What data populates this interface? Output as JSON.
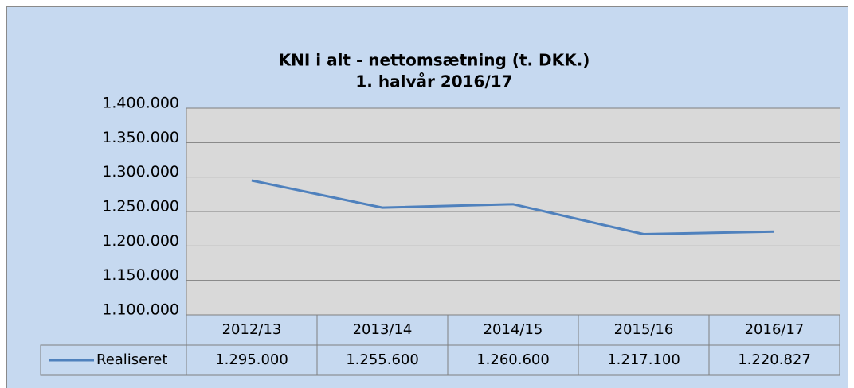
{
  "chart_data": {
    "type": "line",
    "title": "KNI i alt - nettomsætning  (t. DKK.)",
    "subtitle": "1. halvår 2016/17",
    "categories": [
      "2012/13",
      "2013/14",
      "2014/15",
      "2015/16",
      "2016/17"
    ],
    "series": [
      {
        "name": "Realiseret",
        "color": "#4f81bd",
        "values": [
          1295000,
          1255600,
          1260600,
          1217100,
          1220827
        ],
        "value_labels": [
          "1.295.000",
          "1.255.600",
          "1.260.600",
          "1.217.100",
          "1.220.827"
        ]
      }
    ],
    "ylim": [
      1100000,
      1400000
    ],
    "yticks": [
      {
        "value": 1100000,
        "label": "1.100.000"
      },
      {
        "value": 1150000,
        "label": "1.150.000"
      },
      {
        "value": 1200000,
        "label": "1.200.000"
      },
      {
        "value": 1250000,
        "label": "1.250.000"
      },
      {
        "value": 1300000,
        "label": "1.300.000"
      },
      {
        "value": 1350000,
        "label": "1.350.000"
      },
      {
        "value": 1400000,
        "label": "1.400.000"
      }
    ],
    "grid": true
  }
}
